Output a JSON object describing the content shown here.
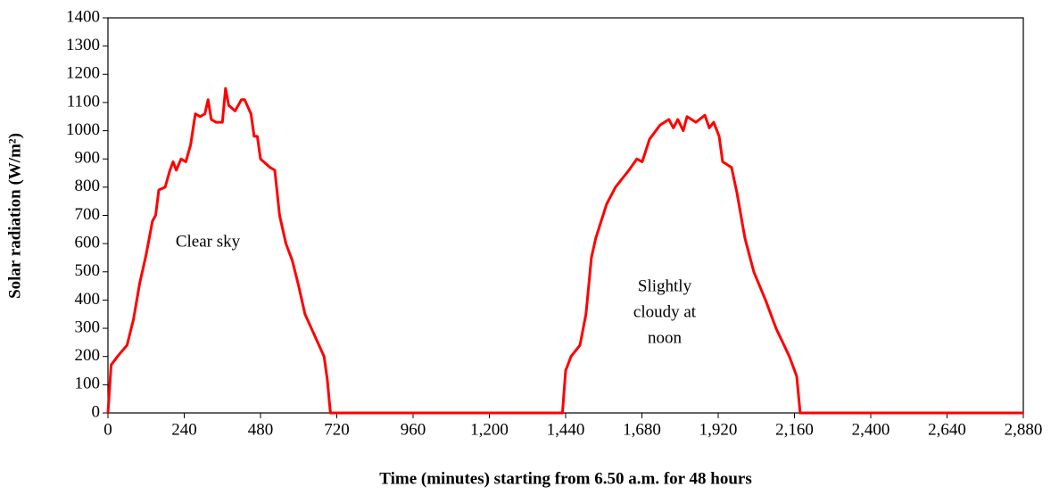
{
  "chart_data": {
    "type": "line",
    "xlabel": "Time (minutes) starting from 6.50 a.m. for 48 hours",
    "ylabel": "Solar radiation  (W/m²)",
    "annotations": [
      [
        "Clear sky"
      ],
      [
        "Slightly",
        "cloudy at",
        "noon"
      ]
    ],
    "color": "#ff0000",
    "x": [
      0,
      10,
      30,
      60,
      80,
      100,
      120,
      140,
      150,
      160,
      180,
      195,
      205,
      215,
      230,
      245,
      260,
      275,
      290,
      305,
      315,
      325,
      340,
      360,
      370,
      380,
      400,
      420,
      430,
      450,
      460,
      470,
      480,
      510,
      525,
      540,
      560,
      580,
      600,
      620,
      640,
      660,
      680,
      690,
      700,
      1430,
      1440,
      1457,
      1485,
      1504,
      1521,
      1535,
      1569,
      1597,
      1639,
      1664,
      1681,
      1704,
      1737,
      1765,
      1779,
      1793,
      1810,
      1822,
      1850,
      1878,
      1892,
      1906,
      1923,
      1934,
      1962,
      1979,
      2004,
      2032,
      2069,
      2102,
      2144,
      2167,
      2178,
      2880
    ],
    "values": [
      0,
      170,
      200,
      240,
      330,
      460,
      560,
      680,
      700,
      790,
      800,
      860,
      890,
      860,
      900,
      890,
      950,
      1060,
      1050,
      1060,
      1110,
      1040,
      1030,
      1030,
      1150,
      1090,
      1070,
      1110,
      1110,
      1060,
      980,
      980,
      900,
      870,
      860,
      700,
      600,
      540,
      450,
      350,
      300,
      250,
      200,
      120,
      0,
      0,
      150,
      200,
      240,
      350,
      550,
      620,
      740,
      800,
      860,
      900,
      890,
      970,
      1020,
      1040,
      1010,
      1040,
      1000,
      1050,
      1030,
      1055,
      1010,
      1030,
      980,
      890,
      870,
      780,
      620,
      500,
      400,
      300,
      200,
      130,
      0,
      0
    ],
    "xlim": [
      0,
      2880
    ],
    "xticks": [
      0,
      240,
      480,
      720,
      960,
      {
        "value": 1200,
        "label": "1,200"
      },
      {
        "value": 1440,
        "label": "1,440"
      },
      {
        "value": 1680,
        "label": "1,680"
      },
      {
        "value": 1920,
        "label": "1,920"
      },
      {
        "value": 2160,
        "label": "2,160"
      },
      {
        "value": 2400,
        "label": "2,400"
      },
      {
        "value": 2640,
        "label": "2,640"
      },
      {
        "value": 2880,
        "label": "2,880"
      }
    ],
    "ylim": [
      0,
      1400
    ],
    "yticks": [
      0,
      100,
      200,
      300,
      400,
      500,
      600,
      700,
      800,
      900,
      1000,
      1100,
      1200,
      1300,
      1400
    ],
    "grid": false
  }
}
